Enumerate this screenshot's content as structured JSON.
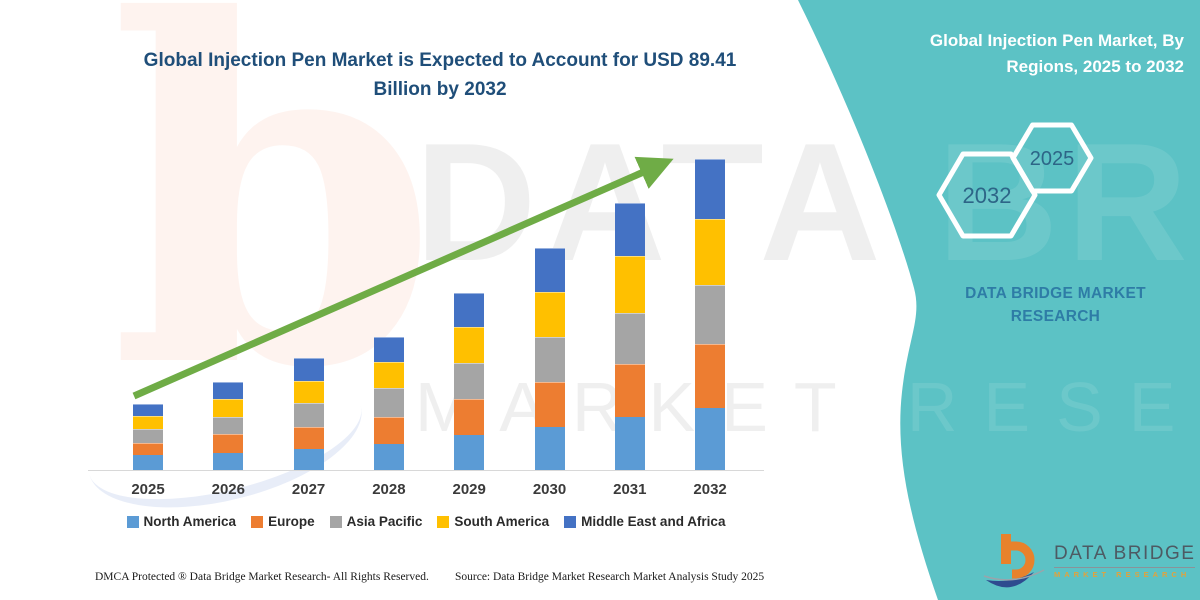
{
  "colors": {
    "teal_panel": "#5cc2c5",
    "title_blue": "#1f4e79",
    "arrow_green": "#6FAC46",
    "hex_text": "#2d6587",
    "brand_text_teal": "#2e7ca6"
  },
  "chart_data": {
    "type": "bar",
    "stacked": true,
    "title": "Global Injection Pen Market is Expected to Account for USD 89.41 Billion by 2032",
    "unit": "USD Billion",
    "categories": [
      "2025",
      "2026",
      "2027",
      "2028",
      "2029",
      "2030",
      "2031",
      "2032"
    ],
    "series": [
      {
        "name": "North America",
        "color": "#5B9BD5",
        "values": [
          4.3,
          4.9,
          6.0,
          7.5,
          10.1,
          12.4,
          15.2,
          17.8
        ]
      },
      {
        "name": "Europe",
        "color": "#ED7D31",
        "values": [
          3.5,
          5.5,
          6.3,
          7.8,
          10.4,
          12.9,
          15.2,
          18.4
        ]
      },
      {
        "name": "Asia Pacific",
        "color": "#A5A5A5",
        "values": [
          4.0,
          4.9,
          6.9,
          8.3,
          10.4,
          12.9,
          14.7,
          17.0
        ]
      },
      {
        "name": "South America",
        "color": "#FFC000",
        "values": [
          3.7,
          5.2,
          6.3,
          7.5,
          10.4,
          12.9,
          16.4,
          19.0
        ]
      },
      {
        "name": "Middle East and Africa",
        "color": "#4472C4",
        "values": [
          3.5,
          4.9,
          6.6,
          7.2,
          9.8,
          12.7,
          15.2,
          17.2
        ]
      }
    ],
    "totals_estimated": [
      19.0,
      25.4,
      32.1,
      38.3,
      51.1,
      63.8,
      76.7,
      89.41
    ],
    "ylim": [
      0,
      90
    ],
    "grid": false,
    "legend_position": "bottom",
    "annotations": [
      "green upward trend arrow from 2025 to 2032"
    ]
  },
  "right_panel": {
    "title": "Global Injection Pen Market, By Regions, 2025 to 2032",
    "hexagon_large": "2032",
    "hexagon_small": "2025",
    "brand_line1": "DATA BRIDGE MARKET",
    "brand_line2": "RESEARCH"
  },
  "footer": {
    "dmca": "DMCA Protected ® Data Bridge Market Research-  All Rights Reserved.",
    "source": "Source: Data Bridge Market Research  Market Analysis Study 2025"
  },
  "logo": {
    "name": "DATA BRIDGE",
    "sub": "MARKET RESEARCH"
  },
  "watermark": {
    "b": "b",
    "line1": "DATA BRIDGE",
    "line2": "MARKET RESEARCH"
  }
}
